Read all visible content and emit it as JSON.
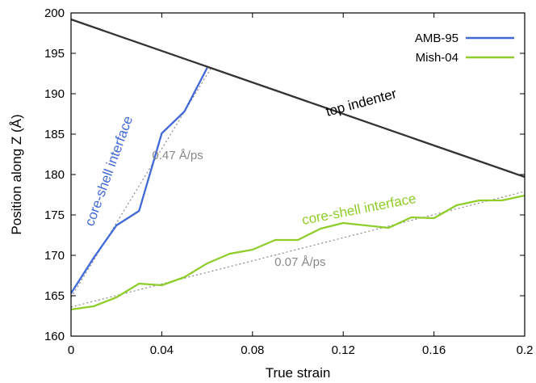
{
  "chart_data": {
    "type": "line",
    "title": "",
    "xlabel": "True strain",
    "ylabel": "Position along Z (Å)",
    "xlim": [
      0,
      0.2
    ],
    "ylim": [
      160,
      200
    ],
    "xticks": [
      0,
      0.04,
      0.08,
      0.12,
      0.16,
      0.2
    ],
    "xtick_labels": [
      "0",
      "0.04",
      "0.08",
      "0.12",
      "0.16",
      "0.2"
    ],
    "yticks": [
      160,
      165,
      170,
      175,
      180,
      185,
      190,
      195,
      200
    ],
    "ytick_labels": [
      "160",
      "165",
      "170",
      "175",
      "180",
      "185",
      "190",
      "195",
      "200"
    ],
    "grid": false,
    "legend_position": "top-right",
    "series": [
      {
        "name": "AMB-95",
        "color": "#4169d8",
        "x": [
          0,
          0.01,
          0.02,
          0.03,
          0.04,
          0.05,
          0.06
        ],
        "y": [
          165.3,
          169.7,
          173.7,
          175.5,
          185.1,
          187.8,
          193.2
        ]
      },
      {
        "name": "Mish-04",
        "color": "#8fcd2a",
        "x": [
          0,
          0.01,
          0.02,
          0.03,
          0.04,
          0.05,
          0.06,
          0.07,
          0.08,
          0.09,
          0.1,
          0.11,
          0.12,
          0.13,
          0.14,
          0.15,
          0.16,
          0.17,
          0.18,
          0.19,
          0.2
        ],
        "y": [
          163.3,
          163.7,
          164.8,
          166.5,
          166.3,
          167.3,
          169.0,
          170.2,
          170.7,
          171.9,
          171.9,
          173.3,
          174.0,
          173.7,
          173.4,
          174.7,
          174.6,
          176.2,
          176.8,
          176.8,
          177.4
        ]
      },
      {
        "name": "",
        "color": "#333333",
        "x": [
          0,
          0.2
        ],
        "y": [
          199.2,
          179.7
        ]
      }
    ],
    "fits": [
      {
        "x": [
          0,
          0.062
        ],
        "y": [
          164.8,
          193.3
        ],
        "color": "#888888"
      },
      {
        "x": [
          0,
          0.2
        ],
        "y": [
          163.6,
          177.9
        ],
        "color": "#888888"
      }
    ],
    "annotations": [
      {
        "text": "top indenter",
        "x": 0.128,
        "y": 188.8,
        "rotation": -15,
        "color": "#000000",
        "size": 17
      },
      {
        "text": "core-shell interface",
        "x": 0.017,
        "y": 180.4,
        "rotation": -70,
        "color": "#4169d8",
        "size": 17
      },
      {
        "text": "0.47 Å/ps",
        "x": 0.047,
        "y": 182.3,
        "rotation": 0,
        "color": "#888888",
        "size": 15
      },
      {
        "text": "core-shell interface",
        "x": 0.127,
        "y": 175.6,
        "rotation": -11,
        "color": "#8fcd2a",
        "size": 17
      },
      {
        "text": "0.07 Å/ps",
        "x": 0.101,
        "y": 169.1,
        "rotation": 0,
        "color": "#888888",
        "size": 15
      }
    ]
  }
}
